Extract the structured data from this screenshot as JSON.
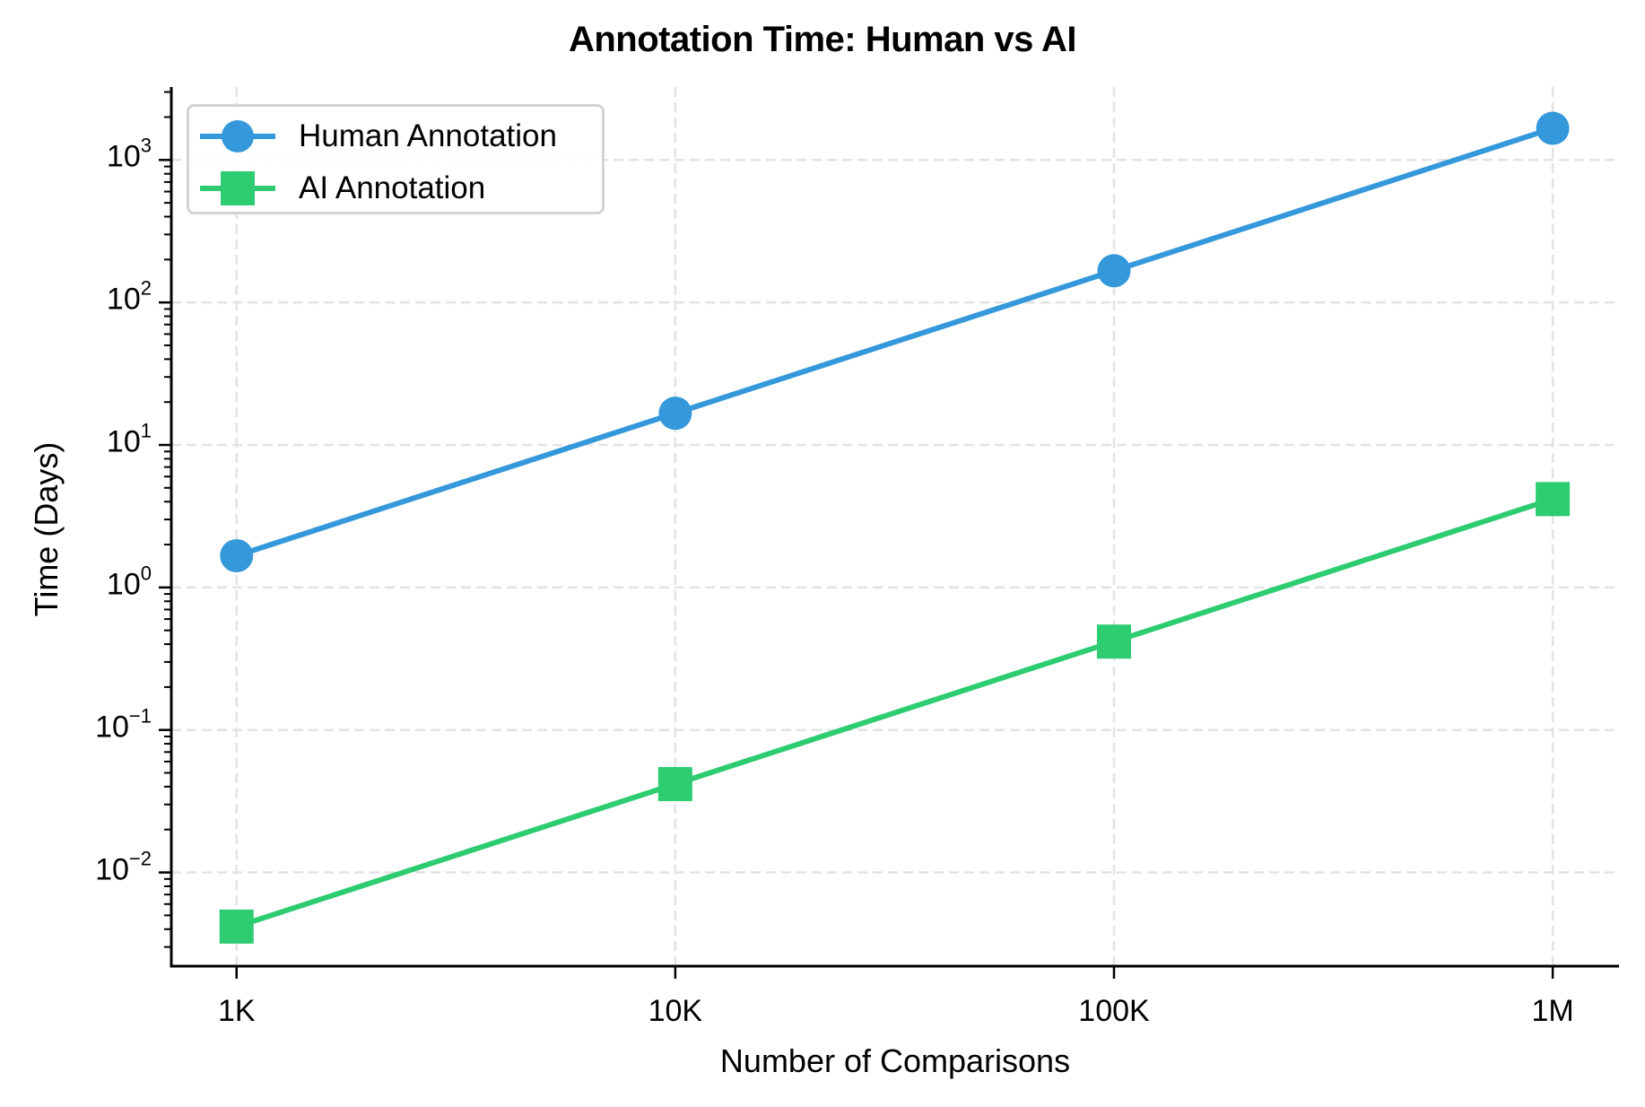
{
  "chart_data": {
    "type": "line",
    "title": "Annotation Time: Human vs AI",
    "xlabel": "Number of Comparisons",
    "ylabel": "Time (Days)",
    "xscale": "log",
    "yscale": "log",
    "x": [
      1000,
      10000,
      100000,
      1000000
    ],
    "categories": [
      "1K",
      "10K",
      "100K",
      "1M"
    ],
    "xlim": [
      710,
      1416000
    ],
    "ylim": [
      0.0022,
      3250
    ],
    "yticks": [
      {
        "base": "10",
        "exp": "3",
        "value": 1000
      },
      {
        "base": "10",
        "exp": "2",
        "value": 100
      },
      {
        "base": "10",
        "exp": "1",
        "value": 10
      },
      {
        "base": "10",
        "exp": "0",
        "value": 1
      },
      {
        "base": "10",
        "exp": "−1",
        "value": 0.1
      },
      {
        "base": "10",
        "exp": "−2",
        "value": 0.01
      }
    ],
    "grid": true,
    "legend_position": "upper left",
    "series": [
      {
        "name": "Human Annotation",
        "color": "#3498db",
        "marker": "circle",
        "values": [
          1.67,
          16.7,
          167,
          1667
        ]
      },
      {
        "name": "AI Annotation",
        "color": "#2ecc71",
        "marker": "square",
        "values": [
          0.00417,
          0.0417,
          0.417,
          4.17
        ]
      }
    ]
  },
  "legend": {
    "items": [
      {
        "label": "Human Annotation"
      },
      {
        "label": "AI Annotation"
      }
    ]
  }
}
